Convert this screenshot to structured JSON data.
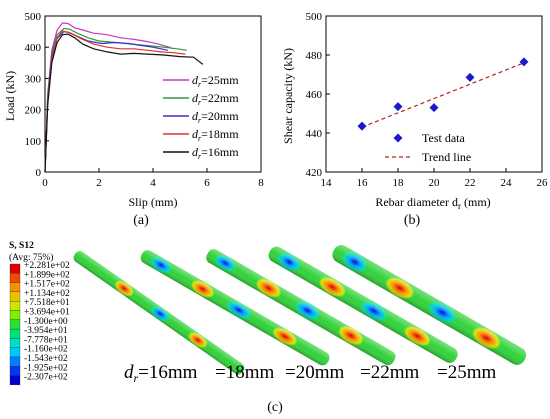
{
  "chart_data": [
    {
      "type": "line",
      "panel_label": "(a)",
      "xlabel": "Slip (mm)",
      "ylabel": "Load (kN)",
      "xlim": [
        0,
        8
      ],
      "ylim": [
        0,
        500
      ],
      "xticks": [
        "0",
        "2",
        "4",
        "6",
        "8"
      ],
      "yticks": [
        "0",
        "100",
        "200",
        "300",
        "400",
        "500"
      ],
      "legend_prefix": "d",
      "legend_sub": "r",
      "series": [
        {
          "name": "=25mm",
          "color": "#cc33cc",
          "x": [
            0,
            0.1,
            0.25,
            0.45,
            0.65,
            0.85,
            1.1,
            1.4,
            1.8,
            2.3,
            2.8,
            3.3,
            3.8,
            4.2,
            4.6,
            4.75
          ],
          "y": [
            0,
            250,
            390,
            455,
            478,
            476,
            462,
            455,
            445,
            440,
            430,
            425,
            418,
            410,
            400,
            395
          ]
        },
        {
          "name": "=22mm",
          "color": "#339933",
          "x": [
            0,
            0.1,
            0.25,
            0.45,
            0.7,
            0.9,
            1.2,
            1.6,
            2.0,
            2.6,
            3.2,
            3.8,
            4.4,
            4.9,
            5.25
          ],
          "y": [
            0,
            240,
            380,
            440,
            460,
            458,
            445,
            430,
            420,
            415,
            410,
            405,
            400,
            395,
            390
          ]
        },
        {
          "name": "=20mm",
          "color": "#3333cc",
          "x": [
            0,
            0.1,
            0.25,
            0.45,
            0.7,
            0.9,
            1.2,
            1.6,
            2.1,
            2.6,
            3.1,
            3.6,
            4.0,
            4.3,
            4.55
          ],
          "y": [
            0,
            230,
            370,
            428,
            450,
            447,
            435,
            420,
            412,
            415,
            412,
            405,
            400,
            395,
            390
          ]
        },
        {
          "name": "=18mm",
          "color": "#dd3333",
          "x": [
            0,
            0.1,
            0.25,
            0.45,
            0.65,
            0.85,
            1.1,
            1.4,
            1.8,
            2.3,
            2.8,
            3.3,
            3.8,
            4.3,
            4.8,
            5.2
          ],
          "y": [
            0,
            220,
            360,
            430,
            452,
            448,
            438,
            425,
            410,
            400,
            395,
            395,
            390,
            385,
            382,
            378
          ]
        },
        {
          "name": "=16mm",
          "color": "#111111",
          "x": [
            0,
            0.1,
            0.25,
            0.45,
            0.65,
            0.85,
            1.1,
            1.4,
            1.8,
            2.3,
            2.8,
            3.3,
            3.8,
            4.4,
            5.0,
            5.5,
            5.85
          ],
          "y": [
            0,
            215,
            350,
            415,
            440,
            442,
            430,
            410,
            395,
            385,
            378,
            380,
            378,
            375,
            370,
            368,
            345
          ]
        }
      ]
    },
    {
      "type": "scatter",
      "panel_label": "(b)",
      "xlabel": "Rebar diameter d",
      "xlabel_sub": "r",
      "xlabel_unit": " (mm)",
      "ylabel": "Shear capacity (kN)",
      "xlim": [
        14,
        26
      ],
      "ylim": [
        420,
        500
      ],
      "xticks": [
        "14",
        "16",
        "18",
        "20",
        "22",
        "24",
        "26"
      ],
      "yticks": [
        "420",
        "440",
        "460",
        "480",
        "500"
      ],
      "series": [
        {
          "name": "Test data",
          "color": "#1a1acc",
          "x": [
            16,
            18,
            20,
            22,
            25
          ],
          "y": [
            443.5,
            453.5,
            453,
            468.5,
            476.5
          ]
        },
        {
          "name": "Trend line",
          "color": "#b22222",
          "x": [
            16,
            25
          ],
          "y": [
            443,
            476
          ]
        }
      ]
    }
  ],
  "fe_panel": {
    "panel_label": "(c)",
    "legend_title": "S, S12",
    "legend_subtitle": "(Avg: 75%)",
    "legend_values": [
      "+2.281e+02",
      "+1.899e+02",
      "+1.517e+02",
      "+1.134e+02",
      "+7.518e+01",
      "+3.694e+01",
      "-1.300e+00",
      "-3.954e+01",
      "-7.778e+01",
      "-1.160e+02",
      "-1.543e+02",
      "-1.925e+02",
      "-2.307e+02"
    ],
    "legend_colors": [
      "#e00000",
      "#f04a00",
      "#f59200",
      "#e8c400",
      "#c8e800",
      "#7cf000",
      "#2ee02e",
      "#00e07a",
      "#00e0c0",
      "#00c8ff",
      "#0080ff",
      "#0038f0",
      "#0000d0"
    ],
    "rebar_prefix": "d",
    "rebar_sub": "r",
    "rebar_labels": [
      "=16mm",
      "=18mm",
      "=20mm",
      "=22mm",
      "=25mm"
    ]
  }
}
